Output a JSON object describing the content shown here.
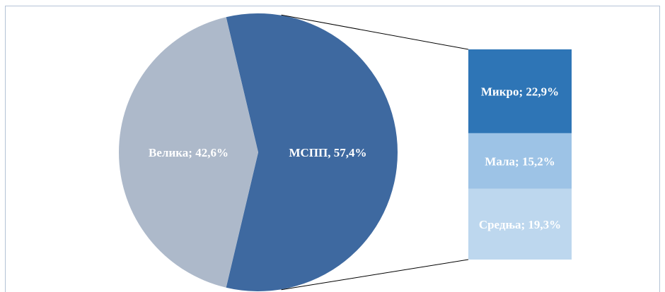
{
  "chart_data": [
    {
      "type": "pie",
      "values": [
        42.6,
        57.4
      ],
      "value_labels": [
        "Велика; 42,6%",
        "МСПП, 57,4%"
      ],
      "colors": [
        "#adb9ca",
        "#3e69a0"
      ]
    },
    {
      "type": "stacked-bar",
      "values": [
        22.9,
        15.2,
        19.3
      ],
      "value_labels": [
        "Микро; 22,9%",
        "Мала; 15,2%",
        "Средња; 19,3%"
      ],
      "colors": [
        "#2e75b6",
        "#9dc3e6",
        "#bdd7ee"
      ]
    }
  ]
}
